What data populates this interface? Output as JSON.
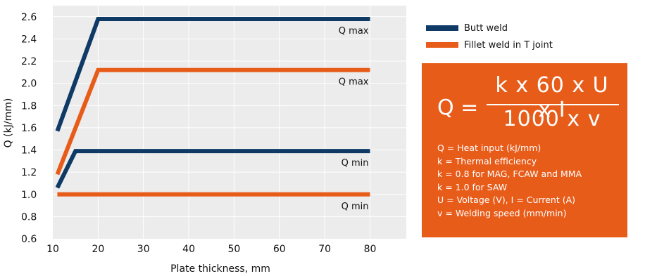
{
  "chart_data": {
    "type": "line",
    "xlabel": "Plate thickness, mm",
    "ylabel": "Q (kJ/mm)",
    "xlim": [
      10,
      88
    ],
    "ylim": [
      0.6,
      2.7
    ],
    "x_ticks": [
      10,
      20,
      30,
      40,
      50,
      60,
      70,
      80
    ],
    "y_ticks": [
      0.6,
      0.8,
      1.0,
      1.2,
      1.4,
      1.6,
      1.8,
      2.0,
      2.2,
      2.4,
      2.6
    ],
    "y_tick_labels": [
      "0.6",
      "0.8",
      "1.0",
      "1.2",
      "1.4",
      "1.6",
      "1.8",
      "2.0",
      "2.2",
      "2.4",
      "2.6"
    ],
    "grid": true,
    "legend_position": "right",
    "series": [
      {
        "name": "Butt weld",
        "label": "Q max",
        "color": "#0f3a66",
        "x": [
          11,
          20,
          80
        ],
        "y": [
          1.57,
          2.58,
          2.58
        ]
      },
      {
        "name": "Butt weld",
        "label": "Q min",
        "color": "#0f3a66",
        "x": [
          11,
          15,
          80
        ],
        "y": [
          1.06,
          1.39,
          1.39
        ]
      },
      {
        "name": "Fillet weld in T joint",
        "label": "Q max",
        "color": "#e85c1a",
        "x": [
          11,
          20,
          80
        ],
        "y": [
          1.18,
          2.12,
          2.12
        ]
      },
      {
        "name": "Fillet weld in T joint",
        "label": "Q min",
        "color": "#e85c1a",
        "x": [
          11,
          80
        ],
        "y": [
          1.0,
          1.0
        ]
      }
    ],
    "legend": [
      {
        "label": "Butt weld",
        "color": "#0f3a66"
      },
      {
        "label": "Fillet weld in T joint",
        "color": "#e85c1a"
      }
    ]
  },
  "formula": {
    "lhs": "Q =",
    "numerator": "k x 60 x U x I",
    "denominator": "1000 x v",
    "notes": [
      "Q = Heat input (kJ/mm)",
      "k = Thermal efficiency",
      "k = 0.8 for MAG, FCAW and MMA",
      "k = 1.0 for SAW",
      "U = Voltage (V), I = Current (A)",
      "v = Welding speed (mm/min)"
    ]
  },
  "colors": {
    "plot_bg": "#ececec",
    "navy": "#0f3a66",
    "orange": "#e85c1a"
  }
}
